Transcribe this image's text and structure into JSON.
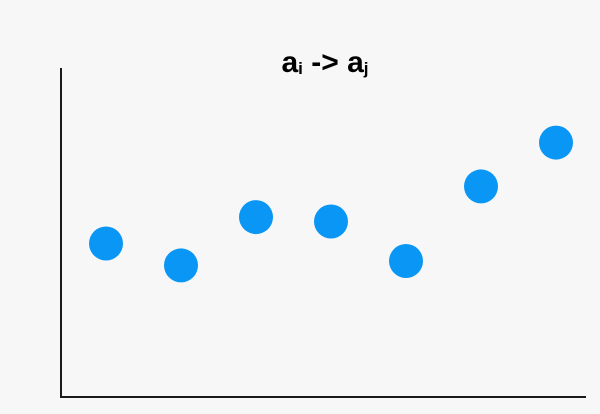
{
  "chart_data": {
    "type": "scatter",
    "title": {
      "base_1": "a",
      "sub_1": "i",
      "arrow": " -> ",
      "base_2": "a",
      "sub_2": "j"
    },
    "xlabel": "",
    "ylabel": "",
    "grid": false,
    "series": [
      {
        "color": "#0a96f4",
        "points": [
          {
            "x": 1,
            "y": 3.0
          },
          {
            "x": 2,
            "y": 2.5
          },
          {
            "x": 3,
            "y": 3.6
          },
          {
            "x": 4,
            "y": 3.5
          },
          {
            "x": 5,
            "y": 2.6
          },
          {
            "x": 6,
            "y": 4.3
          },
          {
            "x": 7,
            "y": 5.3
          }
        ]
      }
    ],
    "xlim": [
      0.4,
      7.4
    ],
    "ylim": [
      -0.5,
      7.0
    ]
  }
}
